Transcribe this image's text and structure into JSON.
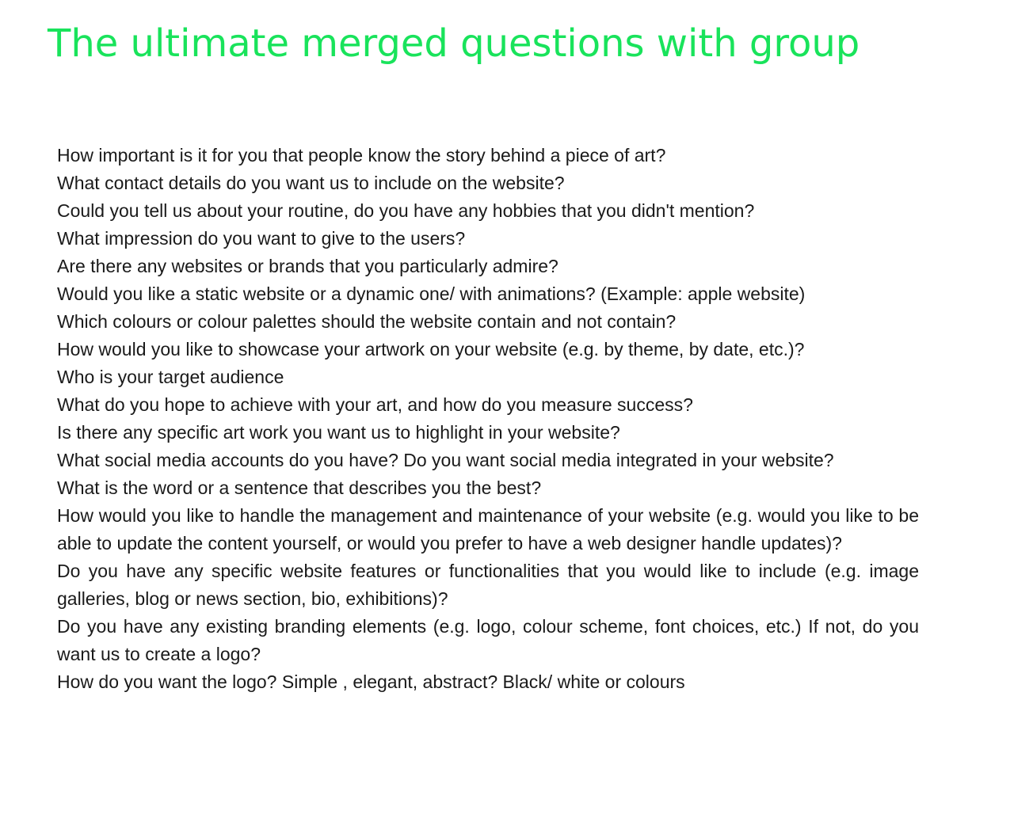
{
  "page": {
    "title": "The ultimate merged questions with group",
    "title_color": "#19e35b",
    "text_color": "#1a1a1a",
    "background": "#ffffff"
  },
  "questions": [
    "How important is it for you that people know the story behind a piece of art?",
    "What contact details do you want us to include on the website?",
    "Could you tell us about your routine, do you have any hobbies that you didn't mention?",
    "What impression do you want to give to the users?",
    "Are there any websites or brands that you particularly admire?",
    "Would you like a static website or a dynamic one/ with animations? (Example: apple website)",
    "Which colours or colour palettes should the website contain and not contain?",
    "How would you like to showcase your artwork on your website (e.g. by theme, by date, etc.)?",
    "Who is your target audience",
    "What do you hope to achieve with your art, and how do you measure success?",
    "Is there any specific art work you want us to highlight in your website?",
    "What social media accounts do you have?  Do you want social media integrated in your website?",
    "What is the word or a sentence that describes you the best?",
    "How would you like to handle the management and maintenance of your website (e.g. would you like to be able to update the content yourself, or would you prefer to have a web designer handle updates)?",
    "Do you have any specific website features or functionalities that you would like to include (e.g. image galleries, blog or news section, bio, exhibitions)?",
    "Do you have any existing branding elements (e.g. logo, colour scheme, font choices, etc.) If not, do you want us to create a logo?",
    "How do you want the logo? Simple , elegant, abstract?  Black/ white or colours"
  ]
}
